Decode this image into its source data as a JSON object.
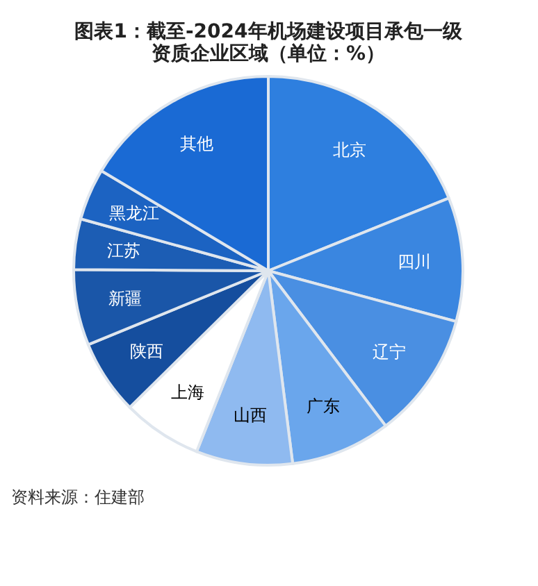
{
  "chart_data": {
    "type": "pie",
    "title": "图表1：截至-2024年机场建设项目承包一级资质企业区域（单位：%）",
    "categories": [
      "北京",
      "四川",
      "辽宁",
      "广东",
      "山西",
      "上海",
      "陕西",
      "新疆",
      "江苏",
      "黑龙江",
      "其他"
    ],
    "values": [
      18.9,
      10.3,
      10.5,
      8.3,
      8.0,
      6.6,
      6.2,
      6.3,
      4.2,
      4.3,
      16.4
    ],
    "colors": [
      "#2e7fdf",
      "#3a86e0",
      "#4a8fe2",
      "#6aa6ec",
      "#8fbaf0",
      "#ffffff",
      "#154e9e",
      "#1a56a8",
      "#1c5db4",
      "#1c63c2",
      "#1a6ad4"
    ],
    "annotations": [
      "资料来源：住建部"
    ]
  }
}
